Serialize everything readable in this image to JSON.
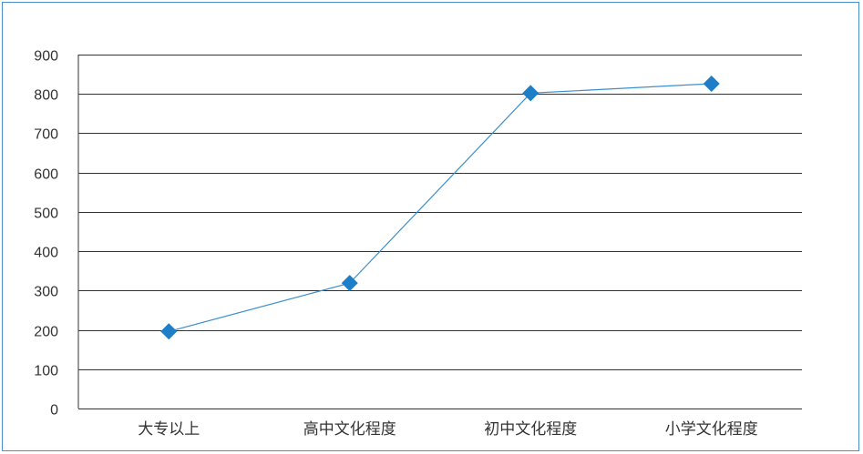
{
  "chart_data": {
    "type": "line",
    "categories": [
      "大专以上",
      "高中文化程度",
      "初中文化程度",
      "小学文化程度"
    ],
    "values": [
      196,
      319,
      802,
      826
    ],
    "ylim": [
      0,
      900
    ],
    "yticks": [
      0,
      100,
      200,
      300,
      400,
      500,
      600,
      700,
      800,
      900
    ],
    "grid": true,
    "colors": {
      "line": "#3a8fd0",
      "marker": "#1f7ec8",
      "grid": "#333333",
      "frame": "#4a90c8"
    },
    "marker": "diamond-icon"
  }
}
